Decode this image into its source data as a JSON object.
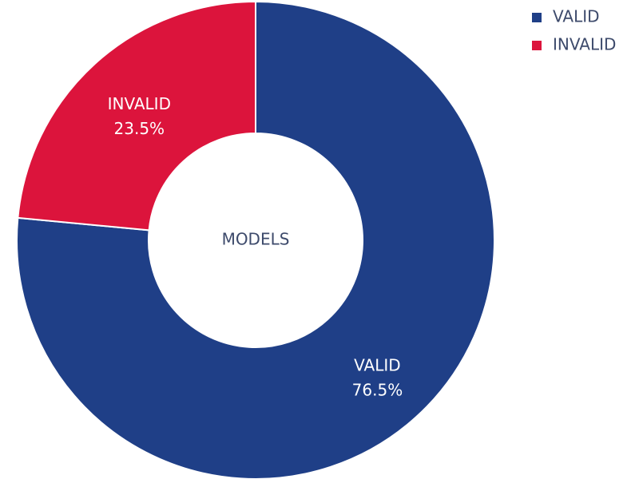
{
  "chart_data": {
    "type": "pie",
    "style": "donut",
    "center_label": "MODELS",
    "categories": [
      "VALID",
      "INVALID"
    ],
    "values": [
      76.5,
      23.5
    ],
    "value_labels": [
      "76.5%",
      "23.5%"
    ],
    "colors": [
      "#1f3f87",
      "#dc143c"
    ],
    "legend": {
      "placement": "top-right",
      "entries": [
        "VALID",
        "INVALID"
      ]
    }
  }
}
